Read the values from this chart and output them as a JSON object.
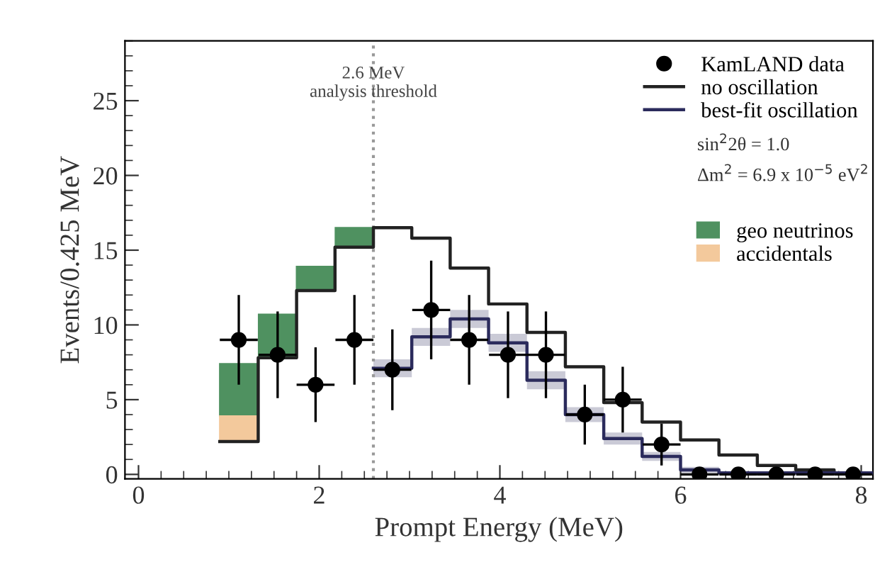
{
  "chart_data": {
    "type": "step",
    "xlabel": "Prompt Energy (MeV)",
    "ylabel": "Events/0.425 MeV",
    "xlim": [
      -0.15,
      8.13
    ],
    "ylim": [
      -0.3,
      29
    ],
    "xticks": [
      0,
      2,
      4,
      6,
      8
    ],
    "yticks": [
      0,
      5,
      10,
      15,
      20,
      25
    ],
    "grid": false,
    "legend": "top right",
    "series": [
      {
        "name": "no oscillation",
        "color": "#222222",
        "x": [
          0.9,
          1.325,
          1.75,
          2.175,
          2.6,
          3.025,
          3.45,
          3.875,
          4.3,
          4.725,
          5.15,
          5.575,
          6.0,
          6.425,
          6.85,
          7.275,
          7.7,
          8.125
        ],
        "values": [
          2.2,
          7.8,
          12.3,
          15.2,
          16.5,
          15.8,
          13.8,
          11.4,
          9.5,
          7.2,
          4.8,
          3.5,
          2.3,
          1.3,
          0.6,
          0.3,
          0.1,
          0.1
        ]
      },
      {
        "name": "best-fit oscillation",
        "color": "#2b2b5c",
        "x": [
          2.6,
          3.025,
          3.45,
          3.875,
          4.3,
          4.725,
          5.15,
          5.575,
          6.0,
          6.425,
          6.85,
          7.275,
          7.7,
          8.125
        ],
        "values": [
          7.1,
          9.2,
          10.4,
          8.8,
          6.3,
          4.0,
          2.4,
          1.2,
          0.3,
          0.1,
          0.1,
          0.1,
          0.1,
          0.1
        ],
        "lower": [
          6.5,
          8.6,
          9.8,
          8.2,
          5.7,
          3.5,
          2.0,
          0.9,
          0.1,
          0.0,
          0.0,
          0.0,
          0.0,
          0.0
        ],
        "upper": [
          7.7,
          9.8,
          11.0,
          9.4,
          6.9,
          4.5,
          2.8,
          1.5,
          0.5,
          0.2,
          0.2,
          0.2,
          0.2,
          0.2
        ]
      },
      {
        "name": "geo neutrinos",
        "type": "bar",
        "color": "#4f9160",
        "x": [
          1.11,
          1.54,
          1.96,
          2.39
        ],
        "base": [
          3.9,
          7.8,
          12.3,
          15.2
        ],
        "values": [
          3.5,
          2.9,
          1.6,
          1.3
        ]
      },
      {
        "name": "accidentals",
        "type": "bar",
        "color": "#f3c99c",
        "x": [
          1.11
        ],
        "base": [
          2.2
        ],
        "values": [
          1.7
        ]
      },
      {
        "name": "KamLAND data",
        "type": "scatter",
        "color": "#000000",
        "marker": "circle",
        "x": [
          1.11,
          1.54,
          1.96,
          2.39,
          2.81,
          3.24,
          3.66,
          4.09,
          4.51,
          4.94,
          5.36,
          5.79,
          6.21,
          6.64,
          7.06,
          7.49,
          7.91
        ],
        "values": [
          9,
          8,
          6,
          9,
          7,
          11,
          9,
          8,
          8,
          4,
          5,
          2,
          0,
          0,
          0,
          0,
          0
        ],
        "errors": [
          3,
          2.9,
          2.5,
          3,
          2.7,
          3.3,
          3,
          2.9,
          2.9,
          2,
          2.2,
          1.4,
          null,
          null,
          null,
          null,
          null
        ],
        "xerrors": [
          0.21,
          0.21,
          0.21,
          0.21,
          0.21,
          0.21,
          0.21,
          0.21,
          0.21,
          0.21,
          0.21,
          0.21,
          0.21,
          0.21,
          0.21,
          0.21,
          0.21
        ]
      }
    ],
    "ref_lines": [
      {
        "axis": "x",
        "value": 2.6,
        "label": "2.6 MeV\nanalysis threshold",
        "color": "#999999",
        "line_style": "dotted"
      }
    ],
    "annotations": [
      "sin$^{2}$2θ = 1.0",
      "Δm$^{2}$ = 6.9 x 10$^{−5}$ eV$^{2}$"
    ]
  }
}
